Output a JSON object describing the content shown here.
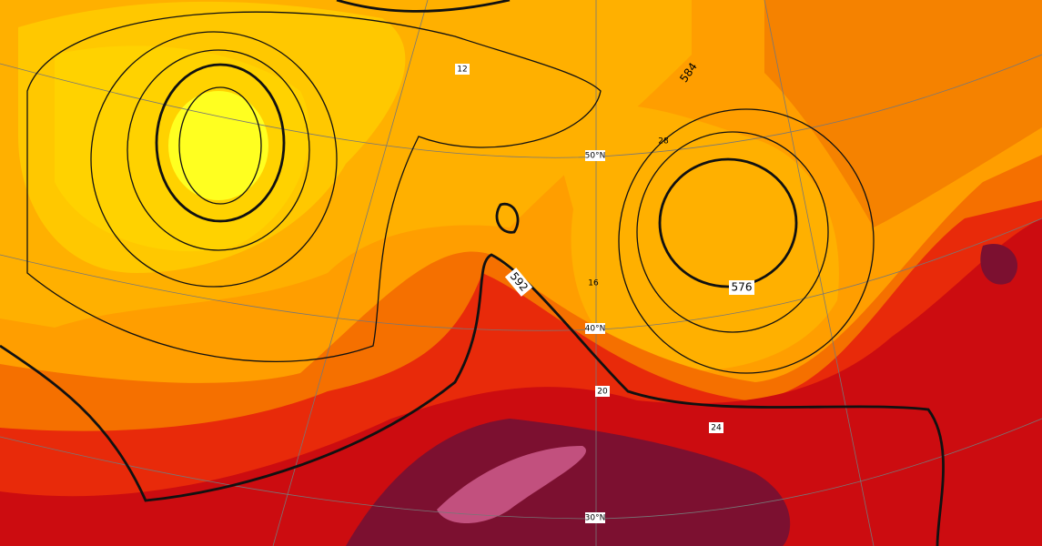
{
  "graticule_labels": [
    "50°N",
    "40°N",
    "30°N"
  ],
  "contour_labels": [
    "12",
    "584",
    "28",
    "16",
    "20",
    "24",
    "592",
    "576"
  ]
}
